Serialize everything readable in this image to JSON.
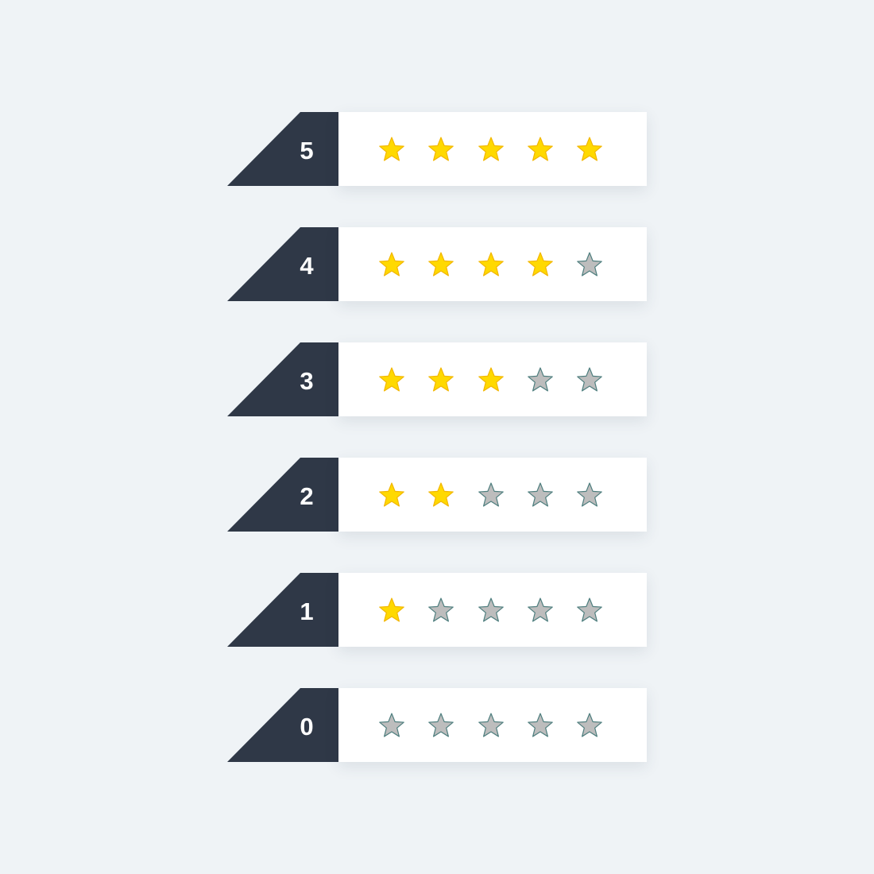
{
  "colors": {
    "tag": "#2f3847",
    "filled": "#ffd900",
    "filled_stroke": "#f2b600",
    "empty": "#bdbdbd",
    "empty_stroke": "#4e7e7e",
    "panel": "#ffffff",
    "background": "#eff3f6"
  },
  "max_stars": 5,
  "icon": "star-icon",
  "ratings": [
    {
      "label": "5",
      "value": 5
    },
    {
      "label": "4",
      "value": 4
    },
    {
      "label": "3",
      "value": 3
    },
    {
      "label": "2",
      "value": 2
    },
    {
      "label": "1",
      "value": 1
    },
    {
      "label": "0",
      "value": 0
    }
  ]
}
